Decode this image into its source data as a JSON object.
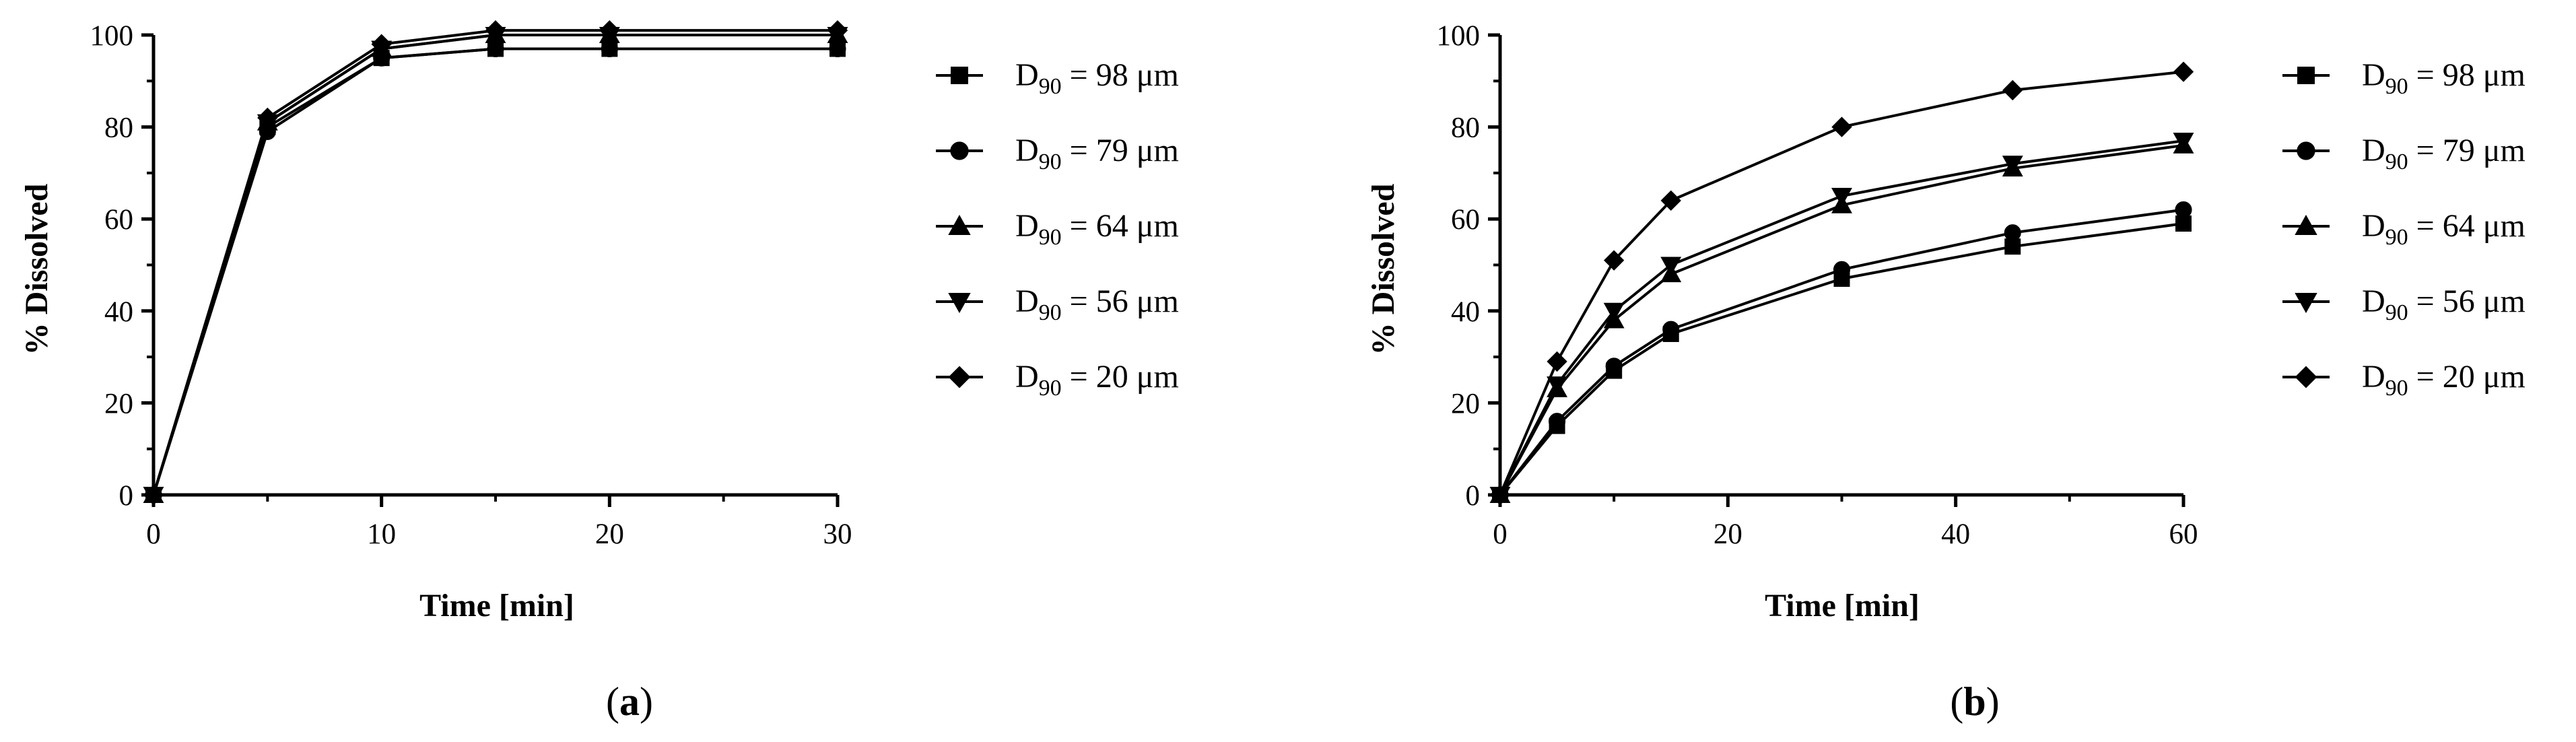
{
  "chart_data": [
    {
      "type": "line",
      "panel": "a",
      "panel_label": "a",
      "xlabel": "Time [min]",
      "ylabel": "% Dissolved",
      "xlim": [
        0,
        30
      ],
      "ylim": [
        0,
        100
      ],
      "xticks": [
        0,
        10,
        20,
        30
      ],
      "yticks": [
        0,
        20,
        40,
        60,
        80,
        100
      ],
      "x": [
        0,
        5,
        10,
        15,
        20,
        30
      ],
      "series": [
        {
          "name": "D90 = 98 μm",
          "marker": "square",
          "values": [
            0,
            80,
            95,
            97,
            97,
            97
          ]
        },
        {
          "name": "D90 = 79 μm",
          "marker": "circle",
          "values": [
            0,
            79,
            95,
            97,
            97,
            97
          ]
        },
        {
          "name": "D90 = 64 μm",
          "marker": "triangle-up",
          "values": [
            0,
            81,
            97,
            100,
            100,
            100
          ]
        },
        {
          "name": "D90 = 56 μm",
          "marker": "triangle-down",
          "values": [
            0,
            81,
            97,
            100,
            100,
            100
          ]
        },
        {
          "name": "D90 = 20 μm",
          "marker": "diamond",
          "values": [
            0,
            82,
            98,
            101,
            101,
            101
          ]
        }
      ]
    },
    {
      "type": "line",
      "panel": "b",
      "panel_label": "b",
      "xlabel": "Time [min]",
      "ylabel": "% Dissolved",
      "xlim": [
        0,
        60
      ],
      "ylim": [
        0,
        100
      ],
      "xticks": [
        0,
        20,
        40,
        60
      ],
      "yticks": [
        0,
        20,
        40,
        60,
        80,
        100
      ],
      "x": [
        0,
        5,
        10,
        15,
        30,
        45,
        60
      ],
      "series": [
        {
          "name": "D90 = 98 μm",
          "marker": "square",
          "values": [
            0,
            15,
            27,
            35,
            47,
            54,
            59
          ]
        },
        {
          "name": "D90 = 79 μm",
          "marker": "circle",
          "values": [
            0,
            16,
            28,
            36,
            49,
            57,
            62
          ]
        },
        {
          "name": "D90 = 64 μm",
          "marker": "triangle-up",
          "values": [
            0,
            23,
            38,
            48,
            63,
            71,
            76
          ]
        },
        {
          "name": "D90 = 56 μm",
          "marker": "triangle-down",
          "values": [
            0,
            24,
            40,
            50,
            65,
            72,
            77
          ]
        },
        {
          "name": "D90 = 20 μm",
          "marker": "diamond",
          "values": [
            0,
            29,
            51,
            64,
            80,
            88,
            92
          ]
        }
      ]
    }
  ],
  "legend": [
    {
      "prefix": "D",
      "subscript": "90",
      "text": " = 98 μm",
      "marker": "square"
    },
    {
      "prefix": "D",
      "subscript": "90",
      "text": " = 79 μm",
      "marker": "circle"
    },
    {
      "prefix": "D",
      "subscript": "90",
      "text": " = 64 μm",
      "marker": "triangle-up"
    },
    {
      "prefix": "D",
      "subscript": "90",
      "text": " = 56 μm",
      "marker": "triangle-down"
    },
    {
      "prefix": "D",
      "subscript": "90",
      "text": " = 20 μm",
      "marker": "diamond"
    }
  ],
  "colors": {
    "line": "#000000",
    "background": "#ffffff"
  }
}
